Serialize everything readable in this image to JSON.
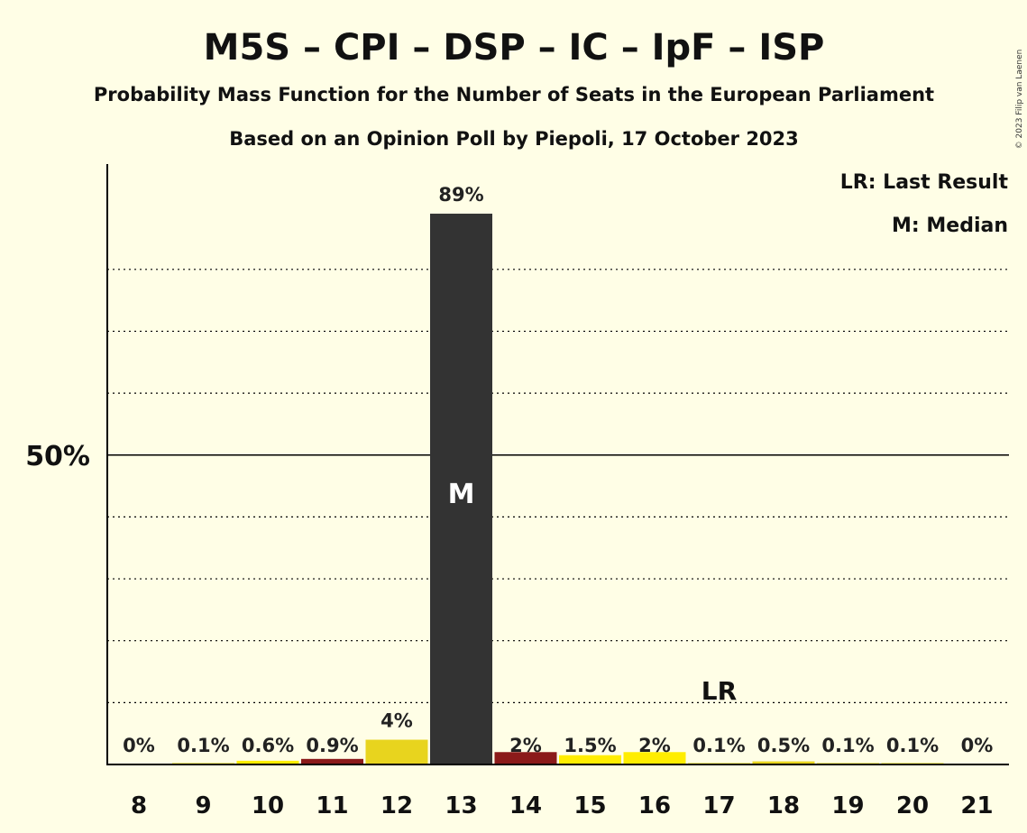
{
  "chart_data": {
    "type": "bar",
    "title": "M5S – CPI – DSP – IC – IpF – ISP",
    "subtitle": "Probability Mass Function for the Number of Seats in the European Parliament",
    "subtitle2": "Based on an Opinion Poll by Piepoli, 17 October 2023",
    "copyright": "© 2023 Filip van Laenen",
    "categories": [
      "8",
      "9",
      "10",
      "11",
      "12",
      "13",
      "14",
      "15",
      "16",
      "17",
      "18",
      "19",
      "20",
      "21"
    ],
    "values": [
      0,
      0.1,
      0.6,
      0.9,
      4,
      89,
      2,
      1.5,
      2,
      0.1,
      0.5,
      0.1,
      0.1,
      0
    ],
    "labels": [
      "0%",
      "0.1%",
      "0.6%",
      "0.9%",
      "4%",
      "89%",
      "2%",
      "1.5%",
      "2%",
      "0.1%",
      "0.5%",
      "0.1%",
      "0.1%",
      "0%"
    ],
    "bar_colors": [
      "#FFED00",
      "#FFED00",
      "#FFED00",
      "#8B1A1A",
      "#E8D41E",
      "#333333",
      "#8B1A1A",
      "#FFED00",
      "#FFED00",
      "#FFED00",
      "#E8D41E",
      "#FFED00",
      "#FFED00",
      "#FFED00"
    ],
    "ylim": [
      0,
      97
    ],
    "yticks": [
      {
        "value": 50,
        "label": "50%"
      }
    ],
    "gridlines": [
      10,
      20,
      30,
      40,
      60,
      70,
      80
    ],
    "median_index": 5,
    "median_marker": "M",
    "last_result_index": 9,
    "last_result_marker": "LR",
    "legend": {
      "position": "top-right",
      "items": [
        "LR: Last Result",
        "M: Median"
      ]
    },
    "colors": {
      "background": "#FFFEE6",
      "axis": "#000000",
      "median_bar": "#333333"
    }
  }
}
